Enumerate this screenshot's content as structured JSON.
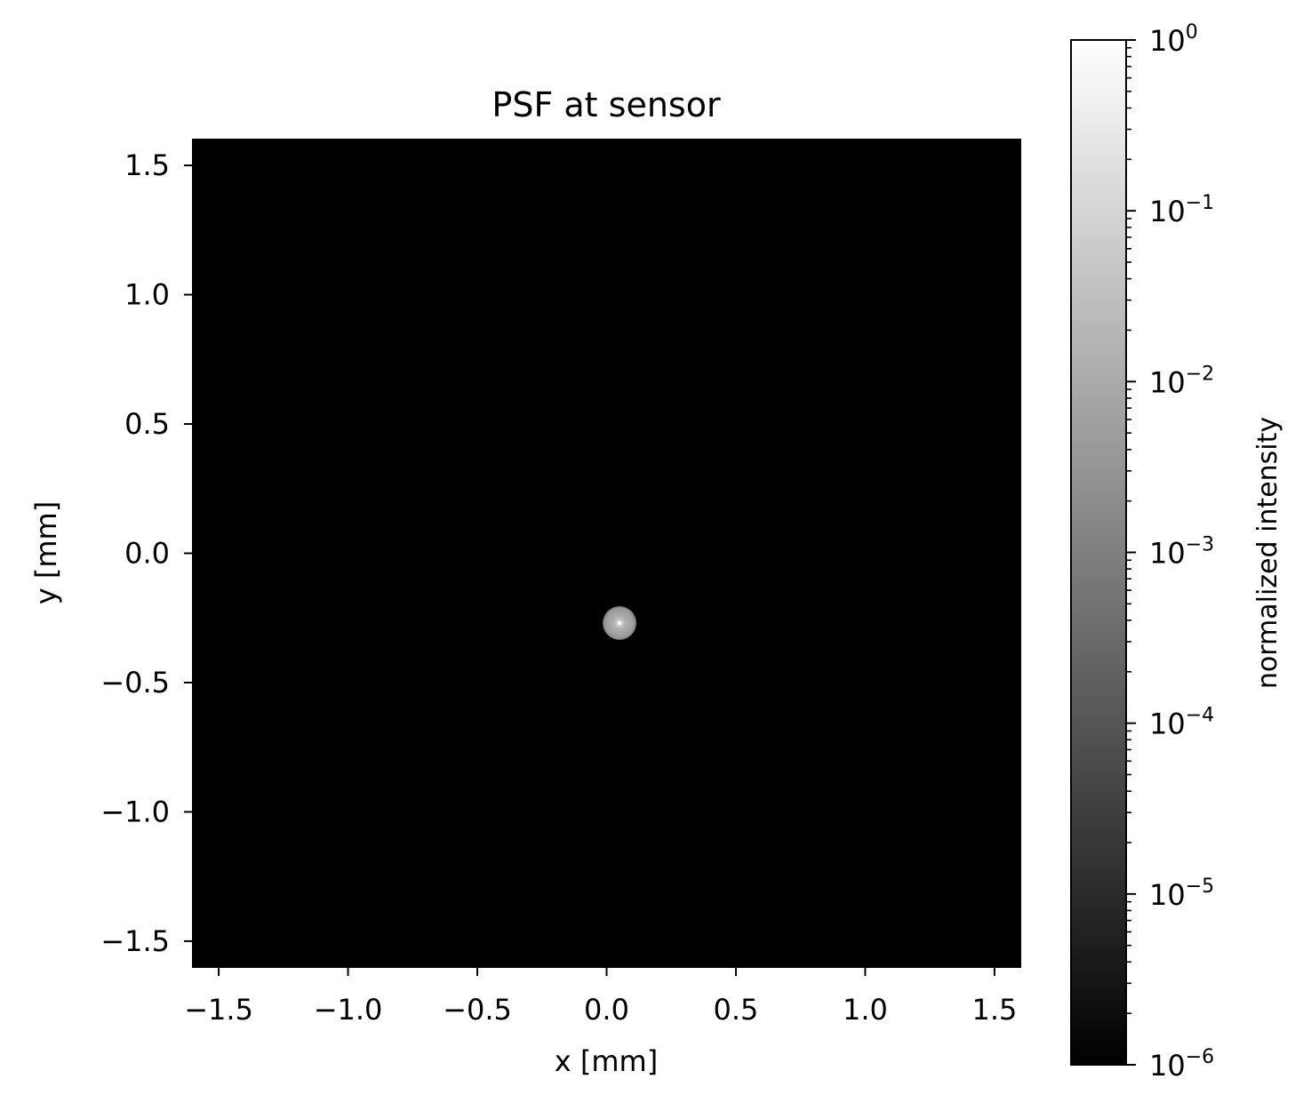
{
  "chart_data": {
    "type": "heatmap",
    "title": "PSF at sensor",
    "xlabel": "x [mm]",
    "ylabel": "y [mm]",
    "xlim": [
      -1.6,
      1.6
    ],
    "ylim": [
      -1.6,
      1.6
    ],
    "xticks": [
      -1.5,
      -1.0,
      -0.5,
      0.0,
      0.5,
      1.0,
      1.5
    ],
    "yticks": [
      -1.5,
      -1.0,
      -0.5,
      0.0,
      0.5,
      1.0,
      1.5
    ],
    "xtick_labels": [
      "−1.5",
      "−1.0",
      "−0.5",
      "0.0",
      "0.5",
      "1.0",
      "1.5"
    ],
    "ytick_labels": [
      "−1.5",
      "−1.0",
      "−0.5",
      "0.0",
      "0.5",
      "1.0",
      "1.5"
    ],
    "colormap": "gray",
    "background_color": "#000000",
    "psf_spot": {
      "center_x": 0.05,
      "center_y": -0.27,
      "radius": 0.065,
      "peak_intensity": 1.0,
      "disk_intensity": 0.05
    },
    "colorbar": {
      "label": "normalized intensity",
      "scale": "log",
      "range": [
        1e-06,
        1
      ],
      "ticks": [
        {
          "value": 1,
          "base": "10",
          "exp": "0"
        },
        {
          "value": 0.1,
          "base": "10",
          "exp": "−1"
        },
        {
          "value": 0.01,
          "base": "10",
          "exp": "−2"
        },
        {
          "value": 0.001,
          "base": "10",
          "exp": "−3"
        },
        {
          "value": 0.0001,
          "base": "10",
          "exp": "−4"
        },
        {
          "value": 1e-05,
          "base": "10",
          "exp": "−5"
        },
        {
          "value": 1e-06,
          "base": "10",
          "exp": "−6"
        }
      ]
    }
  }
}
